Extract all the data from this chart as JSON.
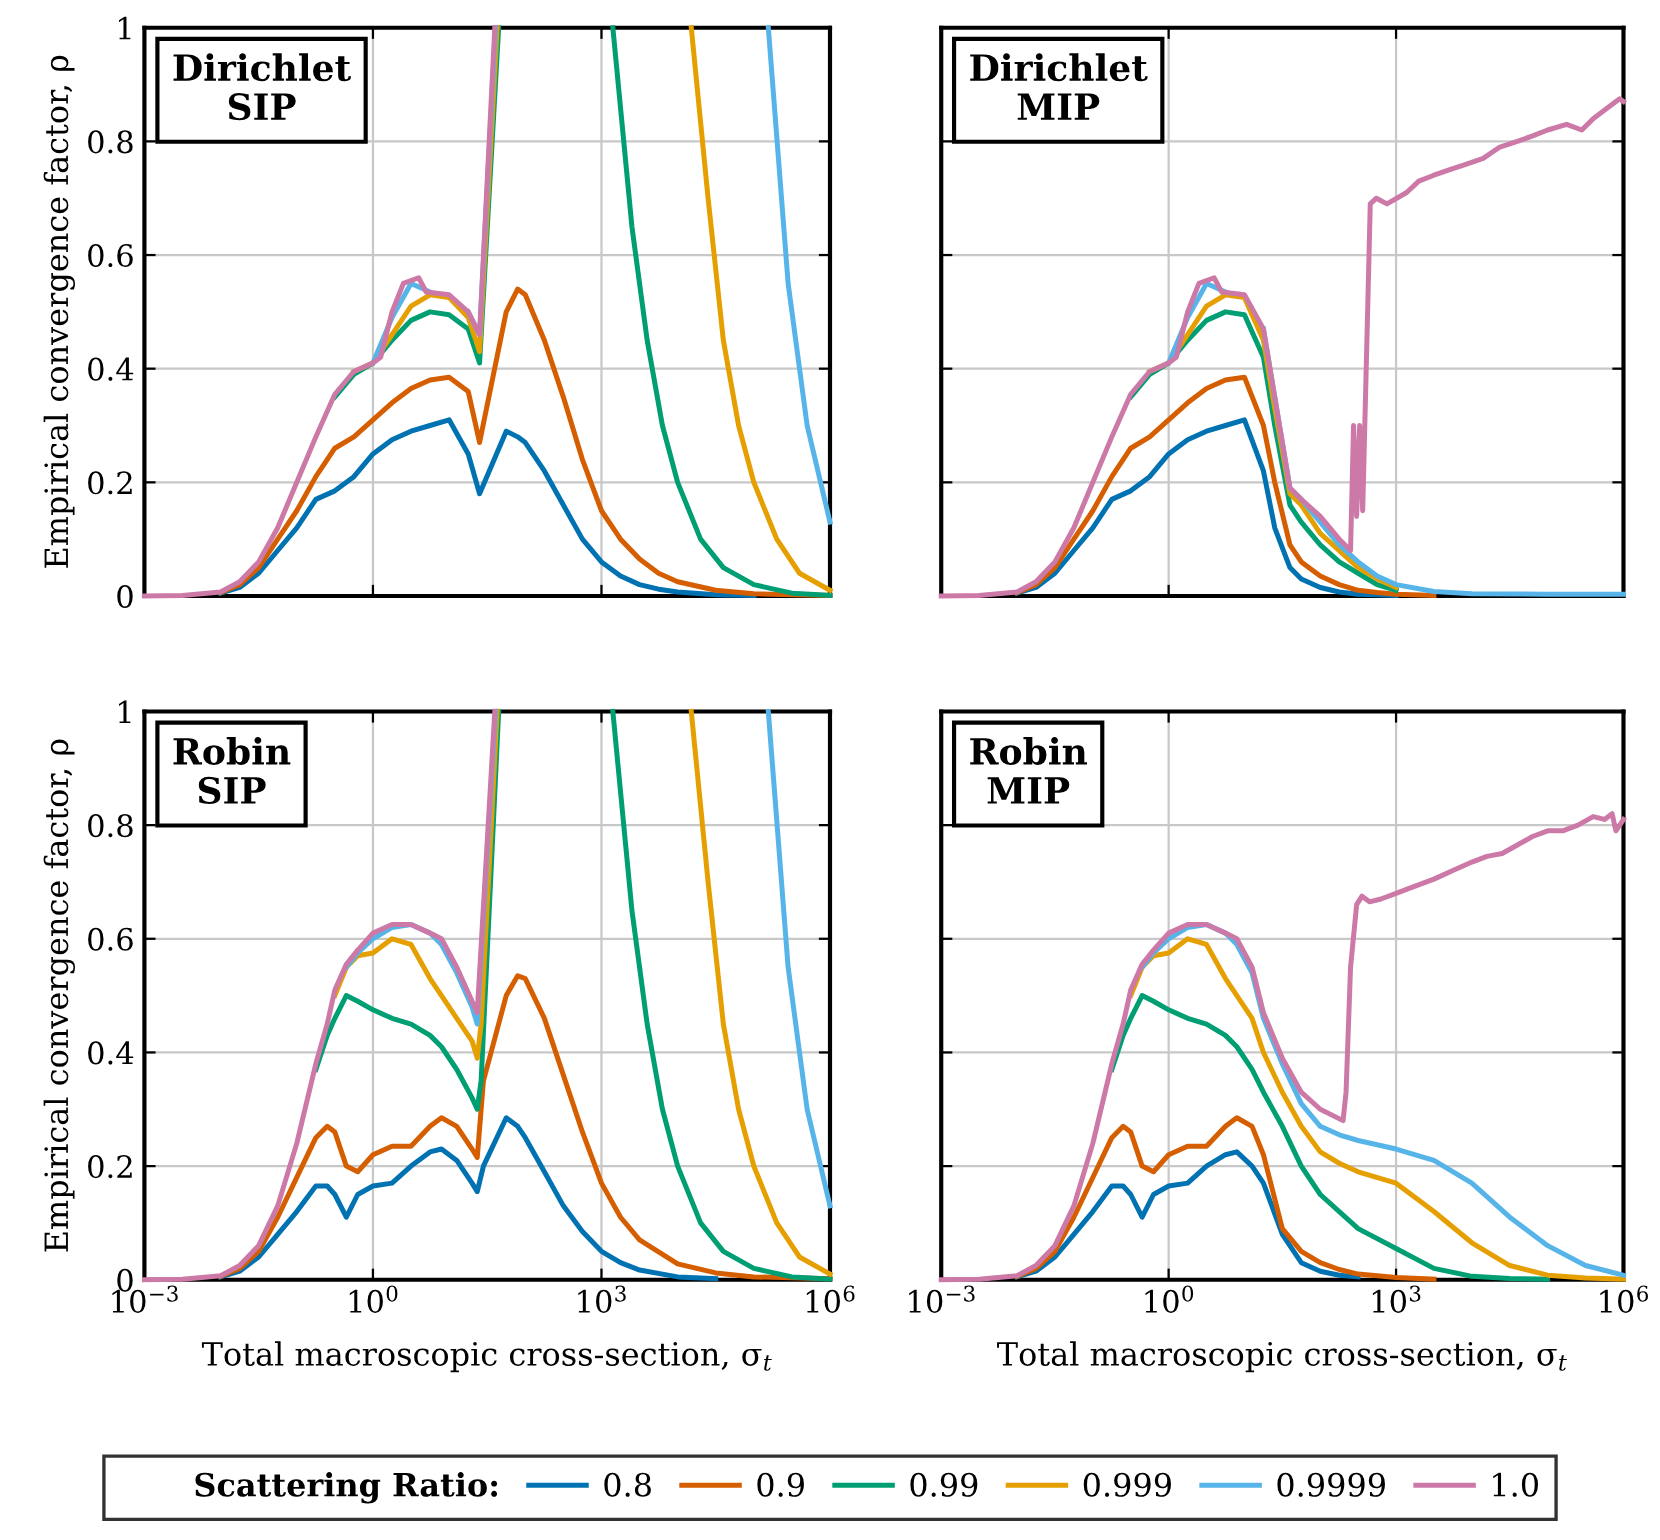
{
  "chart_data": [
    {
      "type": "line",
      "title": "Dirichlet\nSIP",
      "ylabel": "Empirical convergence factor, ρ",
      "log": "x",
      "grid": true,
      "tick_labels": "y",
      "legend": "bottom",
      "legend_title": "Scattering Ratio:",
      "xlim": [
        0.001,
        1000000
      ],
      "ylim": [
        0,
        1
      ],
      "xticks": [
        {
          "value": 0.001,
          "label": null
        },
        {
          "value": 1,
          "label": null
        },
        {
          "value": 1000,
          "label": null
        },
        {
          "value": 1000000,
          "label": null
        }
      ],
      "yticks": [
        0,
        0.2,
        0.4,
        0.6,
        0.8,
        1
      ],
      "x": [
        0.01,
        0.0178,
        0.0316,
        0.0562,
        0.1,
        0.178,
        0.316,
        0.562,
        1,
        1.78,
        3.16,
        5.62,
        10,
        17.8,
        25.1,
        56.2,
        79.4,
        100,
        178,
        316,
        562,
        1000,
        1780,
        3160,
        5620,
        10000,
        31600,
        100000,
        316000,
        1000000
      ],
      "series": [
        {
          "name": "0.8",
          "color": "#0072b2",
          "values": [
            0.005,
            0.015,
            0.04,
            0.08,
            0.12,
            0.17,
            0.185,
            0.21,
            0.25,
            0.275,
            0.29,
            0.3,
            0.31,
            0.25,
            0.18,
            0.29,
            0.28,
            0.27,
            0.22,
            0.16,
            0.1,
            0.06,
            0.035,
            0.02,
            0.012,
            0.007,
            0.002,
            0.001,
            null,
            null
          ]
        },
        {
          "name": "0.9",
          "color": "#d55e00",
          "values": [
            0.006,
            0.02,
            0.05,
            0.1,
            0.15,
            0.21,
            0.26,
            0.28,
            0.31,
            0.34,
            0.365,
            0.38,
            0.385,
            0.36,
            0.27,
            0.5,
            0.54,
            0.53,
            0.45,
            0.35,
            0.24,
            0.15,
            0.1,
            0.065,
            0.04,
            0.025,
            0.01,
            0.004,
            0.002,
            0.001
          ]
        },
        {
          "name": "0.99",
          "color": "#009e73",
          "x": [
            0.316,
            0.562,
            1,
            1.78,
            3.16,
            5.62,
            10,
            17.8,
            25.1,
            44.7,
            316,
            1410,
            2510,
            3980,
            6310,
            10000,
            20000,
            39800,
            100000,
            316000,
            1000000
          ],
          "values": [
            0.35,
            0.39,
            0.41,
            0.45,
            0.485,
            0.5,
            0.495,
            0.47,
            0.41,
            1,
            null,
            1,
            0.65,
            0.45,
            0.3,
            0.2,
            0.1,
            0.05,
            0.02,
            0.005,
            0.001
          ]
        },
        {
          "name": "0.999",
          "color": "#e69f00",
          "x": [
            0.562,
            1,
            1.78,
            3.16,
            5.62,
            10,
            17.8,
            25.1,
            42.7,
            316,
            15100,
            25100,
            39800,
            63100,
            100000,
            200000,
            398000,
            1000000
          ],
          "values": [
            0.395,
            0.41,
            0.46,
            0.51,
            0.53,
            0.525,
            0.49,
            0.43,
            1,
            null,
            1,
            0.7,
            0.45,
            0.3,
            0.2,
            0.1,
            0.04,
            0.01
          ]
        },
        {
          "name": "0.9999",
          "color": "#56b4e9",
          "x": [
            1,
            1.78,
            3.16,
            5.62,
            10,
            17.8,
            25.1,
            40.7,
            316,
            155000,
            282000,
            501000,
            1000000
          ],
          "values": [
            0.41,
            0.49,
            0.55,
            0.535,
            null,
            0.5,
            0.46,
            1,
            null,
            1,
            0.55,
            0.3,
            0.13
          ]
        },
        {
          "name": "1.0",
          "color": "#cc79a7",
          "x": [
            0.001,
            0.00316,
            0.01,
            0.0178,
            0.0316,
            0.0562,
            0.1,
            0.178,
            0.316,
            0.562,
            1,
            1.26,
            1.78,
            2.51,
            3.98,
            5.01,
            10,
            17.8,
            25.1,
            39.8
          ],
          "values": [
            0,
            0.001,
            0.007,
            0.025,
            0.06,
            0.12,
            0.2,
            0.28,
            0.355,
            0.395,
            0.41,
            0.42,
            0.5,
            0.55,
            0.56,
            0.535,
            0.53,
            0.5,
            0.46,
            1
          ]
        }
      ]
    },
    {
      "type": "line",
      "title": "Dirichlet\nMIP",
      "log": "x",
      "grid": true,
      "tick_labels": false,
      "xlim": [
        0.001,
        1000000
      ],
      "ylim": [
        0,
        1
      ],
      "xticks": [
        {
          "value": 0.001,
          "label": null
        },
        {
          "value": 1,
          "label": null
        },
        {
          "value": 1000,
          "label": null
        },
        {
          "value": 1000000,
          "label": null
        }
      ],
      "yticks": [
        {
          "value": 0,
          "label": null
        },
        {
          "value": 0.2,
          "label": null
        },
        {
          "value": 0.4,
          "label": null
        },
        {
          "value": 0.6,
          "label": null
        },
        {
          "value": 0.8,
          "label": null
        },
        {
          "value": 1,
          "label": null
        }
      ],
      "x": [
        0.01,
        0.0178,
        0.0316,
        0.0562,
        0.1,
        0.178,
        0.316,
        0.562,
        1,
        1.78,
        3.16,
        5.62,
        10,
        17.8,
        25.1,
        39.8,
        56.2,
        100,
        178,
        316,
        562,
        1000,
        3160,
        10000,
        100000,
        1000000
      ],
      "series": [
        {
          "color": "#0072b2",
          "values": [
            0.005,
            0.015,
            0.04,
            0.08,
            0.12,
            0.17,
            0.185,
            0.21,
            0.25,
            0.275,
            0.29,
            0.3,
            0.31,
            0.22,
            0.12,
            0.05,
            0.03,
            0.015,
            0.007,
            0.003,
            0.002,
            0.001,
            null,
            null,
            null,
            null
          ]
        },
        {
          "color": "#d55e00",
          "values": [
            0.006,
            0.02,
            0.05,
            0.1,
            0.15,
            0.21,
            0.26,
            0.28,
            0.31,
            0.34,
            0.365,
            0.38,
            0.385,
            0.3,
            0.2,
            0.09,
            0.06,
            0.035,
            0.02,
            0.01,
            0.006,
            0.003,
            0.001,
            null,
            null,
            null
          ]
        },
        {
          "color": "#009e73",
          "values": [
            null,
            null,
            null,
            null,
            null,
            null,
            0.35,
            0.39,
            0.41,
            0.45,
            0.485,
            0.5,
            0.495,
            0.42,
            0.3,
            0.16,
            0.13,
            0.09,
            0.06,
            0.04,
            0.02,
            0.01,
            null,
            null,
            null,
            null
          ]
        },
        {
          "color": "#e69f00",
          "values": [
            null,
            null,
            null,
            null,
            null,
            null,
            null,
            0.395,
            0.41,
            0.46,
            0.51,
            0.53,
            0.525,
            0.45,
            0.33,
            0.18,
            0.16,
            0.11,
            0.08,
            0.05,
            0.03,
            0.015,
            null,
            null,
            null,
            null
          ]
        },
        {
          "color": "#56b4e9",
          "values": [
            null,
            null,
            null,
            null,
            null,
            null,
            null,
            null,
            0.41,
            0.49,
            0.55,
            0.535,
            null,
            0.47,
            0.35,
            0.19,
            0.17,
            0.13,
            0.09,
            0.06,
            0.035,
            0.02,
            0.008,
            0.004,
            0.003,
            0.003
          ]
        },
        {
          "color": "#cc79a7",
          "x": [
            0.001,
            0.00316,
            0.01,
            0.0178,
            0.0316,
            0.0562,
            0.1,
            0.178,
            0.316,
            0.562,
            1,
            1.26,
            1.78,
            2.51,
            3.98,
            5.01,
            10,
            17.8,
            25.1,
            39.8,
            56.2,
            100,
            178,
            251,
            275,
            302,
            331,
            363,
            457,
            550,
            759,
            1380,
            1995,
            3090,
            5010,
            8510,
            14100,
            23400,
            39800,
            64600,
            100000,
            178000,
            282000,
            398000,
            631000,
            891000,
            1000000
          ],
          "values": [
            0,
            0.001,
            0.007,
            0.025,
            0.06,
            0.12,
            0.2,
            0.28,
            0.355,
            0.395,
            0.41,
            0.42,
            0.5,
            0.55,
            0.56,
            0.535,
            0.53,
            0.47,
            0.35,
            0.19,
            0.17,
            0.14,
            0.1,
            0.08,
            0.3,
            0.14,
            0.3,
            0.15,
            0.69,
            0.7,
            0.69,
            0.71,
            0.73,
            0.74,
            0.75,
            0.76,
            0.77,
            0.79,
            0.8,
            0.81,
            0.82,
            0.83,
            0.82,
            0.84,
            0.86,
            0.875,
            0.87
          ]
        }
      ]
    },
    {
      "type": "line",
      "title": "Robin\nSIP",
      "xlabel": "Total macroscopic cross-section, σ$_{t}$",
      "ylabel": "Empirical convergence factor, ρ",
      "log": "x",
      "grid": true,
      "xlim": [
        0.001,
        1000000
      ],
      "ylim": [
        0,
        1
      ],
      "xticks": [
        {
          "value": 0.001,
          "label": "10$^{−3}$"
        },
        {
          "value": 1,
          "label": "10$^{0}$"
        },
        {
          "value": 1000,
          "label": "10$^{3}$"
        },
        {
          "value": 1000000,
          "label": "10$^{6}$"
        }
      ],
      "yticks": [
        0,
        0.2,
        0.4,
        0.6,
        0.8,
        1
      ],
      "x": [
        0.01,
        0.0178,
        0.0316,
        0.0562,
        0.1,
        0.178,
        0.251,
        0.316,
        0.447,
        0.631,
        1,
        1.78,
        3.16,
        5.62,
        7.94,
        12.6,
        20,
        23.4,
        28.2,
        56.2,
        79.4,
        100,
        178,
        316,
        562,
        1000,
        1780,
        3160,
        10000,
        31600,
        100000,
        1000000
      ],
      "series": [
        {
          "color": "#0072b2",
          "values": [
            0.005,
            0.015,
            0.04,
            0.08,
            0.12,
            0.165,
            0.165,
            0.15,
            0.11,
            0.15,
            0.165,
            0.17,
            0.2,
            0.225,
            0.23,
            0.21,
            0.17,
            0.155,
            0.2,
            0.285,
            0.27,
            0.25,
            0.19,
            0.13,
            0.085,
            0.05,
            0.03,
            0.017,
            0.005,
            0.002,
            null,
            null
          ]
        },
        {
          "color": "#d55e00",
          "values": [
            0.006,
            0.02,
            0.05,
            0.11,
            0.18,
            0.25,
            0.27,
            0.26,
            0.2,
            0.19,
            0.22,
            0.235,
            0.235,
            0.27,
            0.285,
            0.27,
            0.23,
            0.215,
            0.35,
            0.5,
            0.535,
            0.53,
            0.46,
            0.36,
            0.26,
            0.17,
            0.11,
            0.07,
            0.028,
            0.012,
            0.005,
            0.002
          ]
        },
        {
          "color": "#009e73",
          "x": [
            0.178,
            0.251,
            0.316,
            0.447,
            0.631,
            1,
            1.78,
            3.16,
            5.62,
            7.94,
            12.6,
            20,
            23.4,
            26.3,
            44.7,
            316,
            1410,
            2510,
            3980,
            6310,
            10000,
            20000,
            39800,
            100000,
            316000,
            1000000
          ],
          "values": [
            0.37,
            0.43,
            0.46,
            0.5,
            0.49,
            0.475,
            0.46,
            0.45,
            0.43,
            0.41,
            0.37,
            0.32,
            0.3,
            0.35,
            1,
            null,
            1,
            0.65,
            0.45,
            0.3,
            0.2,
            0.1,
            0.05,
            0.02,
            0.005,
            0.001
          ]
        },
        {
          "color": "#e69f00",
          "x": [
            0.316,
            0.447,
            0.631,
            1,
            1.78,
            3.16,
            5.62,
            7.94,
            12.6,
            20,
            23.4,
            26.3,
            42.7,
            316,
            15100,
            25100,
            39800,
            63100,
            100000,
            200000,
            398000,
            1000000
          ],
          "values": [
            0.5,
            0.55,
            0.57,
            0.575,
            0.6,
            0.59,
            0.53,
            0.5,
            0.46,
            0.42,
            0.39,
            0.45,
            1,
            null,
            1,
            0.7,
            0.45,
            0.3,
            0.2,
            0.1,
            0.04,
            0.01
          ]
        },
        {
          "color": "#56b4e9",
          "x": [
            0.447,
            0.631,
            1,
            1.78,
            3.16,
            5.62,
            7.94,
            12.6,
            20,
            23.4,
            40.7,
            316,
            155000,
            282000,
            501000,
            1000000
          ],
          "values": [
            0.55,
            0.575,
            0.6,
            0.62,
            0.625,
            0.61,
            0.59,
            0.54,
            0.48,
            0.45,
            1,
            null,
            1,
            0.55,
            0.3,
            0.13
          ]
        },
        {
          "color": "#cc79a7",
          "x": [
            0.001,
            0.00316,
            0.01,
            0.0178,
            0.0316,
            0.0562,
            0.1,
            0.178,
            0.251,
            0.316,
            0.447,
            0.631,
            1,
            1.78,
            3.16,
            5.62,
            7.94,
            12.6,
            20,
            23.4,
            39.8
          ],
          "values": [
            0,
            0.001,
            0.007,
            0.025,
            0.06,
            0.13,
            0.24,
            0.38,
            0.45,
            0.51,
            0.555,
            0.58,
            0.61,
            0.625,
            0.625,
            0.61,
            0.6,
            0.55,
            0.49,
            0.47,
            1
          ]
        }
      ]
    },
    {
      "type": "line",
      "title": "Robin\nMIP",
      "xlabel": "Total macroscopic cross-section, σ$_{t}$",
      "log": "x",
      "grid": true,
      "tick_labels": "x",
      "xlim": [
        0.001,
        1000000
      ],
      "ylim": [
        0,
        1
      ],
      "xticks": [
        {
          "value": 0.001,
          "label": "10$^{−3}$"
        },
        {
          "value": 1,
          "label": "10$^{0}$"
        },
        {
          "value": 1000,
          "label": "10$^{3}$"
        },
        {
          "value": 1000000,
          "label": "10$^{6}$"
        }
      ],
      "yticks": [
        {
          "value": 0,
          "label": null
        },
        {
          "value": 0.2,
          "label": null
        },
        {
          "value": 0.4,
          "label": null
        },
        {
          "value": 0.6,
          "label": null
        },
        {
          "value": 0.8,
          "label": null
        },
        {
          "value": 1,
          "label": null
        }
      ],
      "x": [
        0.01,
        0.0178,
        0.0316,
        0.0562,
        0.1,
        0.178,
        0.251,
        0.316,
        0.447,
        0.631,
        1,
        1.78,
        3.16,
        5.62,
        7.94,
        12.6,
        17.8,
        31.6,
        56.2,
        100,
        178,
        316,
        1000,
        3160,
        10000,
        31600,
        100000,
        316000,
        1000000
      ],
      "series": [
        {
          "color": "#0072b2",
          "values": [
            0.005,
            0.015,
            0.04,
            0.08,
            0.12,
            0.165,
            0.165,
            0.15,
            0.11,
            0.15,
            0.165,
            0.17,
            0.2,
            0.22,
            0.225,
            0.2,
            0.17,
            0.08,
            0.03,
            0.015,
            0.008,
            0.005,
            null,
            null,
            null,
            null,
            null,
            null,
            null
          ]
        },
        {
          "color": "#d55e00",
          "values": [
            0.006,
            0.02,
            0.05,
            0.11,
            0.18,
            0.25,
            0.27,
            0.26,
            0.2,
            0.19,
            0.22,
            0.235,
            0.235,
            0.27,
            0.285,
            0.27,
            0.22,
            0.09,
            0.05,
            0.03,
            0.018,
            0.01,
            0.004,
            0.001,
            null,
            null,
            null,
            null,
            null
          ]
        },
        {
          "color": "#009e73",
          "values": [
            null,
            null,
            null,
            null,
            null,
            0.37,
            0.43,
            0.46,
            0.5,
            0.49,
            0.475,
            0.46,
            0.45,
            0.43,
            0.41,
            0.37,
            0.33,
            0.27,
            0.2,
            0.15,
            0.12,
            0.09,
            0.055,
            0.02,
            0.006,
            0.002,
            0.001,
            null,
            null
          ]
        },
        {
          "color": "#e69f00",
          "values": [
            null,
            null,
            null,
            null,
            null,
            null,
            null,
            0.5,
            0.55,
            0.57,
            0.575,
            0.6,
            0.59,
            0.53,
            0.5,
            0.46,
            0.4,
            0.33,
            0.27,
            0.225,
            0.205,
            0.19,
            0.17,
            0.12,
            0.065,
            0.025,
            0.008,
            0.003,
            0.001
          ]
        },
        {
          "color": "#56b4e9",
          "values": [
            null,
            null,
            null,
            null,
            null,
            null,
            null,
            null,
            0.55,
            0.575,
            0.6,
            0.62,
            0.625,
            0.61,
            0.59,
            0.54,
            0.46,
            0.38,
            0.31,
            0.27,
            0.255,
            0.245,
            0.23,
            0.21,
            0.17,
            0.11,
            0.06,
            0.025,
            0.008
          ]
        },
        {
          "color": "#cc79a7",
          "x": [
            0.001,
            0.00316,
            0.01,
            0.0178,
            0.0316,
            0.0562,
            0.1,
            0.178,
            0.251,
            0.316,
            0.447,
            0.631,
            1,
            1.78,
            3.16,
            5.62,
            7.94,
            12.6,
            17.8,
            31.6,
            56.2,
            100,
            200,
            219,
            251,
            302,
            355,
            447,
            631,
            1000,
            1580,
            3160,
            5620,
            10000,
            15800,
            25100,
            39800,
            63100,
            100000,
            158000,
            251000,
            398000,
            562000,
            708000,
            794000,
            1000000
          ],
          "values": [
            0,
            0.001,
            0.007,
            0.025,
            0.06,
            0.13,
            0.24,
            0.38,
            0.45,
            0.51,
            0.555,
            0.58,
            0.61,
            0.625,
            0.625,
            0.61,
            0.6,
            0.55,
            0.47,
            0.39,
            0.33,
            0.3,
            0.28,
            0.33,
            0.55,
            0.66,
            0.675,
            0.665,
            0.67,
            0.68,
            0.69,
            0.705,
            0.72,
            0.735,
            0.745,
            0.75,
            0.765,
            0.78,
            0.79,
            0.79,
            0.8,
            0.815,
            0.81,
            0.82,
            0.79,
            0.81
          ]
        }
      ]
    }
  ]
}
